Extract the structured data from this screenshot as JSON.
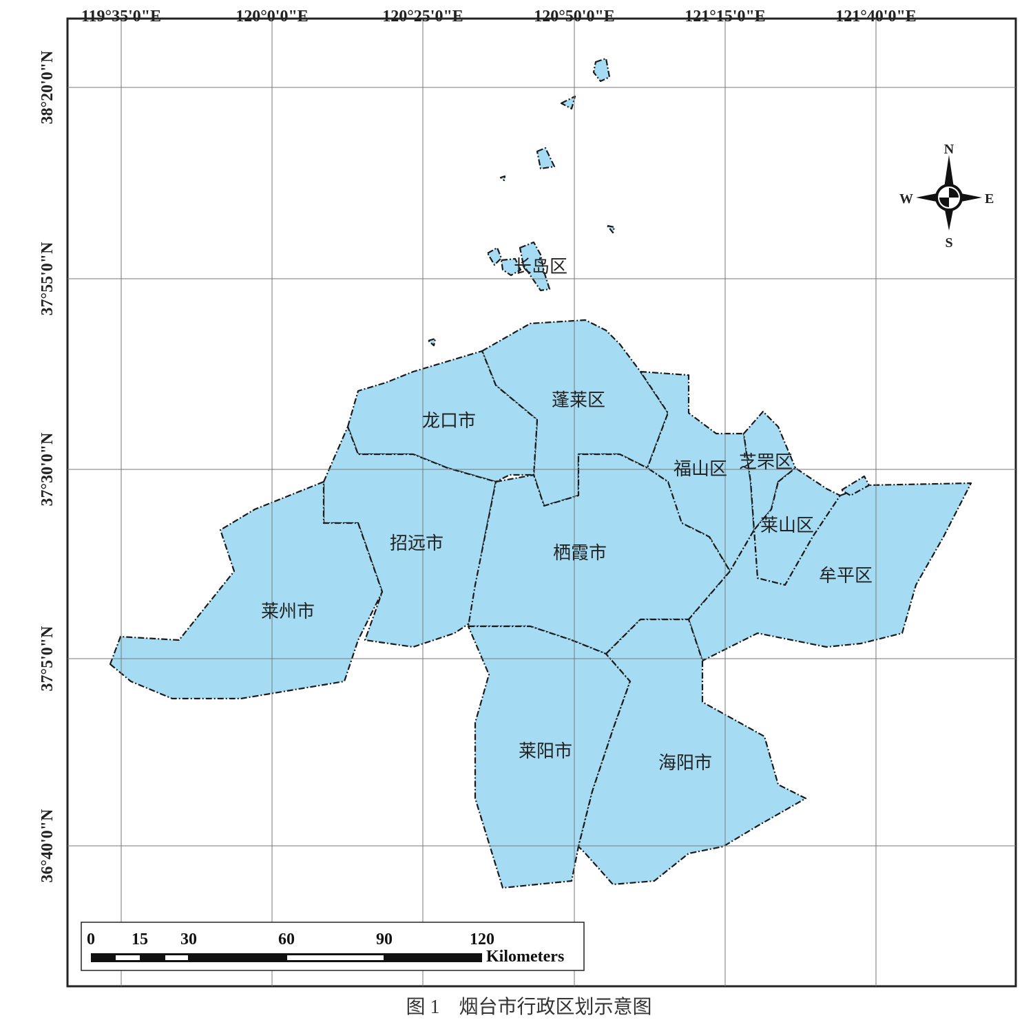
{
  "grid": {
    "longitude_labels": [
      "119°35'0\"E",
      "120°0'0\"E",
      "120°25'0\"E",
      "120°50'0\"E",
      "121°15'0\"E",
      "121°40'0\"E"
    ],
    "latitude_labels": [
      "38°20'0\"N",
      "37°55'0\"N",
      "37°30'0\"N",
      "37°5'0\"N",
      "36°40'0\"N"
    ]
  },
  "regions": [
    {
      "name": "长岛区"
    },
    {
      "name": "蓬莱区"
    },
    {
      "name": "龙口市"
    },
    {
      "name": "福山区"
    },
    {
      "name": "芝罘区"
    },
    {
      "name": "莱山区"
    },
    {
      "name": "招远市"
    },
    {
      "name": "栖霞市"
    },
    {
      "name": "牟平区"
    },
    {
      "name": "莱州市"
    },
    {
      "name": "莱阳市"
    },
    {
      "name": "海阳市"
    }
  ],
  "compass": {
    "north": "N",
    "east": "E",
    "south": "S",
    "west": "W"
  },
  "scale_bar": {
    "ticks": [
      0,
      15,
      30,
      60,
      90,
      120
    ],
    "unit": "Kilometers"
  },
  "caption": "图 1　烟台市行政区划示意图"
}
